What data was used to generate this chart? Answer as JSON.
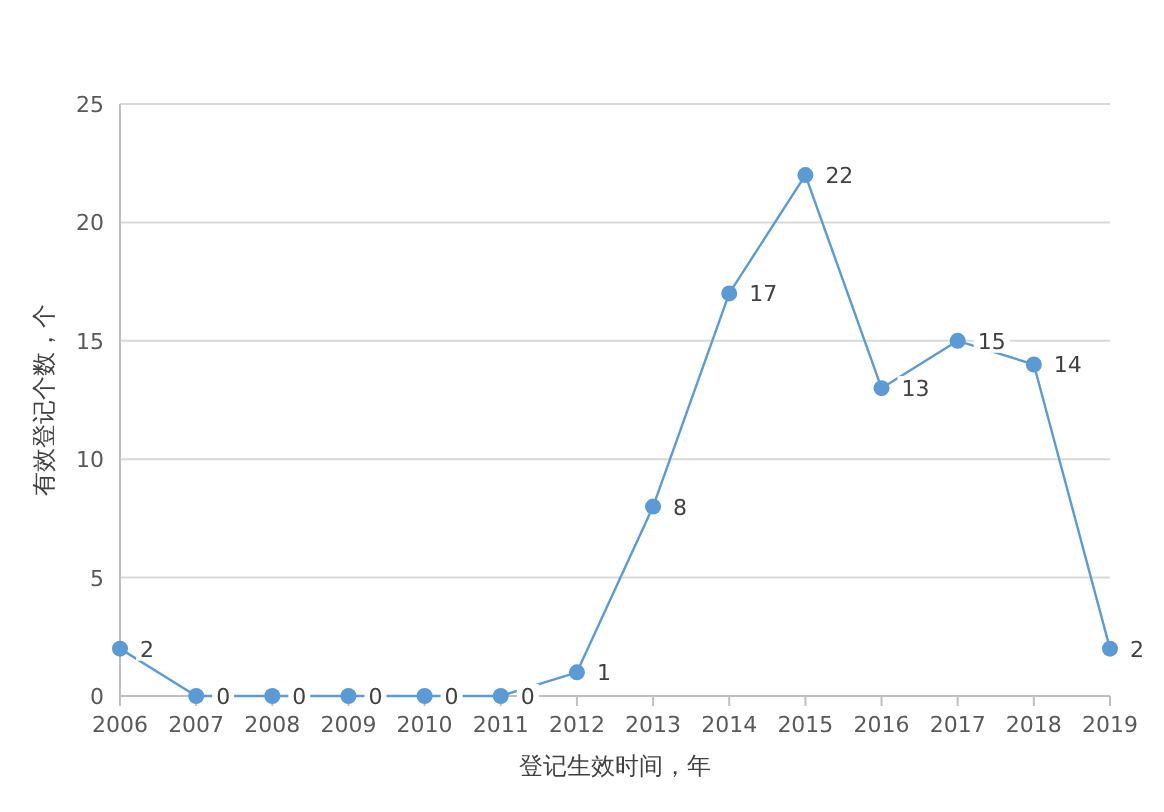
{
  "chart_data": {
    "type": "line",
    "xlabel": "登记生效时间，年",
    "ylabel": "有效登记个数，个",
    "categories": [
      "2006",
      "2007",
      "2008",
      "2009",
      "2010",
      "2011",
      "2012",
      "2013",
      "2014",
      "2015",
      "2016",
      "2017",
      "2018",
      "2019"
    ],
    "values": [
      2,
      0,
      0,
      0,
      0,
      0,
      1,
      8,
      17,
      22,
      13,
      15,
      14,
      2
    ],
    "color": "#5b9bd5",
    "ylim": [
      0,
      25
    ],
    "yticks": [
      0,
      5,
      10,
      15,
      20,
      25
    ],
    "grid": "y",
    "marker": "circle",
    "line_style": "solid",
    "data_labels": true
  }
}
